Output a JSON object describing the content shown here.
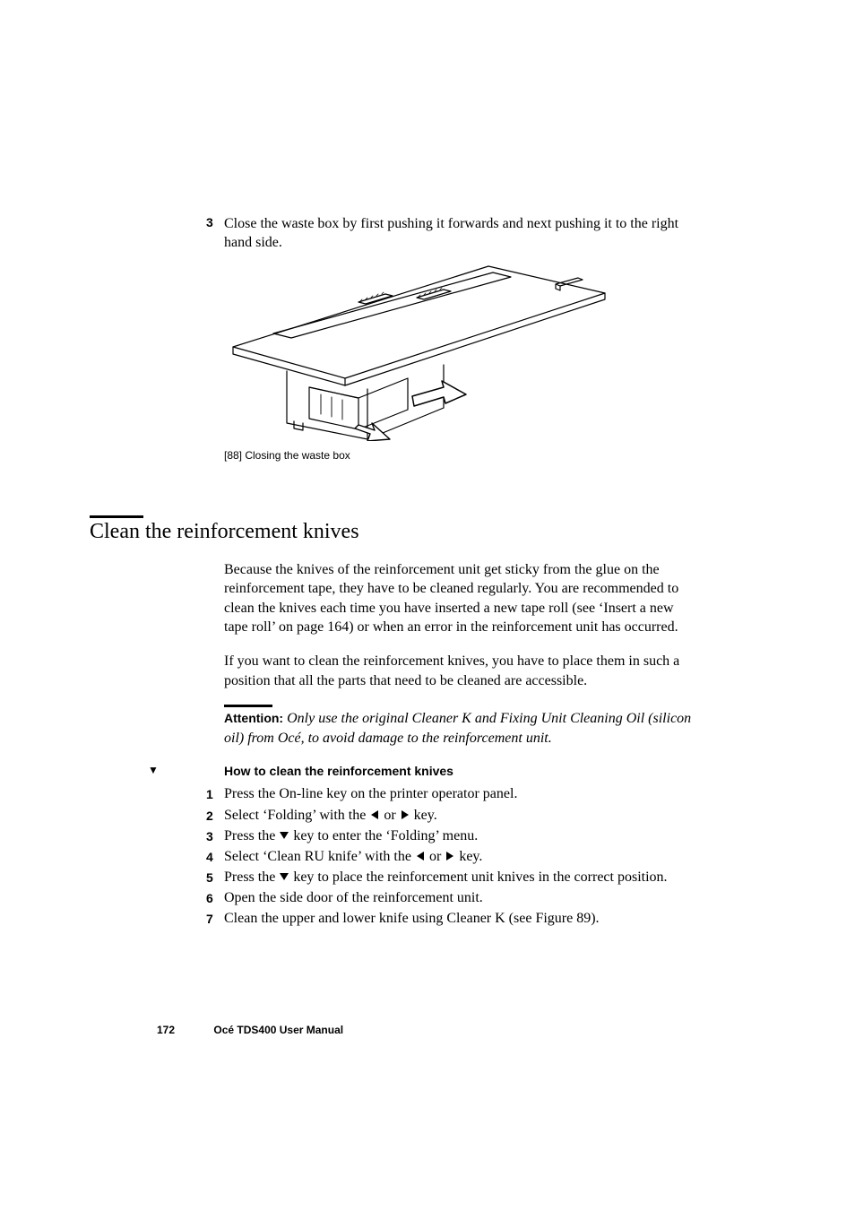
{
  "step3": {
    "num": "3",
    "text": "Close the waste box by first pushing it forwards and next pushing it to the right hand side."
  },
  "figure": {
    "caption": "[88] Closing the waste box"
  },
  "section": {
    "heading": "Clean the reinforcement knives"
  },
  "para1": "Because the knives of the reinforcement unit get sticky from the glue on the reinforcement tape, they have to be cleaned regularly. You are recommended to clean the knives each time you have inserted a new tape roll (see ‘Insert a new tape roll’ on page 164) or when an error in the reinforcement unit has occurred.",
  "para2": "If you want to clean the reinforcement knives, you have to place them in such a position that all the parts that need to be cleaned are accessible.",
  "attention": {
    "label": "Attention:",
    "body": " Only use the original Cleaner K and Fixing Unit Cleaning Oil (silicon oil) from Océ, to avoid damage to the reinforcement unit."
  },
  "procedure": {
    "marker": "▼",
    "heading": "How to clean the reinforcement knives",
    "items": [
      {
        "num": "1",
        "pre": "Press the On-line key on the printer operator panel.",
        "icon1": "",
        "mid": "",
        "icon2": "",
        "post": ""
      },
      {
        "num": "2",
        "pre": "Select ‘Folding’ with the ",
        "icon1": "left",
        "mid": " or ",
        "icon2": "right",
        "post": " key."
      },
      {
        "num": "3",
        "pre": "Press the ",
        "icon1": "down",
        "mid": "",
        "icon2": "",
        "post": " key to enter the ‘Folding’ menu."
      },
      {
        "num": "4",
        "pre": "Select ‘Clean RU knife’ with the ",
        "icon1": "left",
        "mid": " or ",
        "icon2": "right",
        "post": " key."
      },
      {
        "num": "5",
        "pre": "Press the ",
        "icon1": "down",
        "mid": "",
        "icon2": "",
        "post": " key to place the reinforcement unit knives in the correct position."
      },
      {
        "num": "6",
        "pre": "Open the side door of the reinforcement unit.",
        "icon1": "",
        "mid": "",
        "icon2": "",
        "post": ""
      },
      {
        "num": "7",
        "pre": "Clean the upper and lower knife using Cleaner K (see Figure 89).",
        "icon1": "",
        "mid": "",
        "icon2": "",
        "post": ""
      }
    ]
  },
  "footer": {
    "pagenum": "172",
    "title": "Océ TDS400 User Manual"
  },
  "icons": {
    "left": "◀",
    "right": "▶",
    "down": "▼"
  },
  "colors": {
    "text": "#000000",
    "bg": "#ffffff"
  }
}
